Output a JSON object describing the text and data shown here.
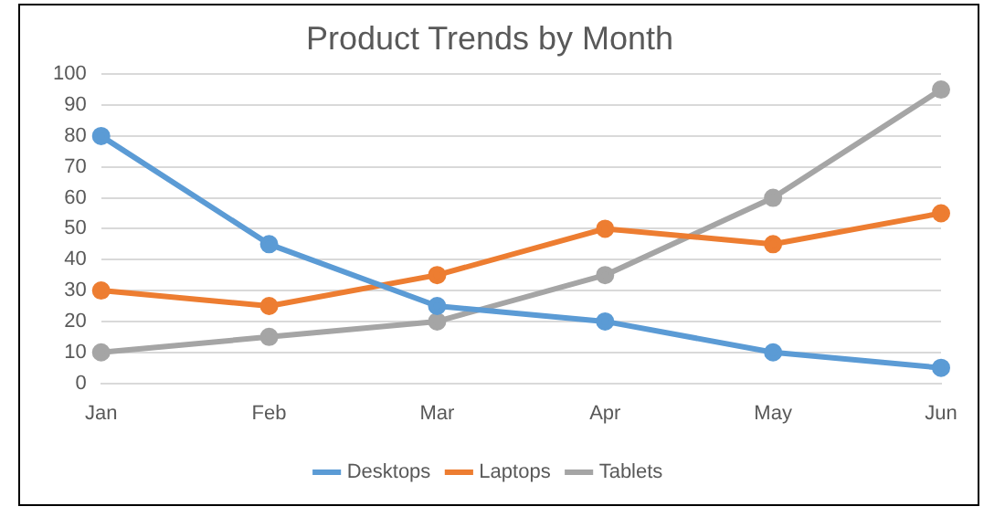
{
  "chart_data": {
    "type": "line",
    "title": "Product Trends by Month",
    "categories": [
      "Jan",
      "Feb",
      "Mar",
      "Apr",
      "May",
      "Jun"
    ],
    "series": [
      {
        "name": "Desktops",
        "color": "#5b9bd5",
        "values": [
          80,
          45,
          25,
          20,
          10,
          5
        ]
      },
      {
        "name": "Laptops",
        "color": "#ed7d31",
        "values": [
          30,
          25,
          35,
          50,
          45,
          55
        ]
      },
      {
        "name": "Tablets",
        "color": "#a5a5a5",
        "values": [
          10,
          15,
          20,
          35,
          60,
          95
        ]
      }
    ],
    "ylim": [
      0,
      100
    ],
    "yticks": [
      0,
      10,
      20,
      30,
      40,
      50,
      60,
      70,
      80,
      90,
      100
    ],
    "grid": "y",
    "legend": "bottom",
    "marker": "circle",
    "line_style": "solid"
  }
}
